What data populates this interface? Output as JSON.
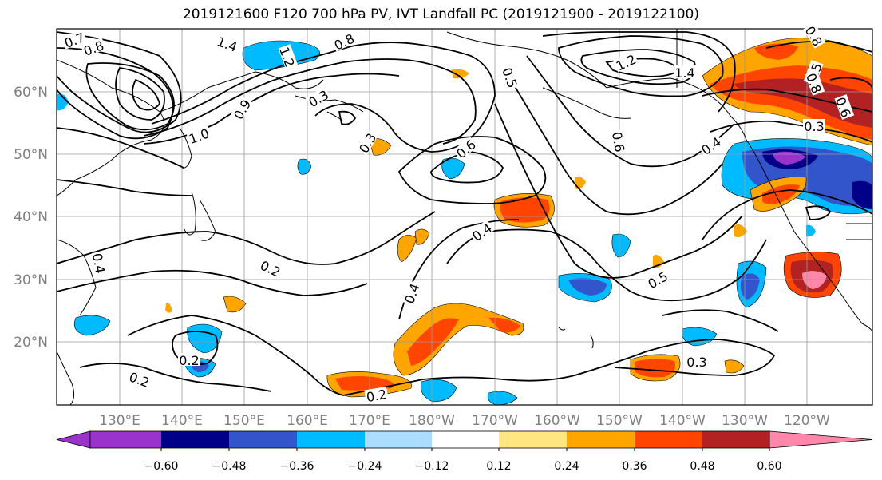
{
  "title": "2019121600 F120 700 hPa PV, IVT Landfall PC (2019121900 - 2019122100)",
  "lat_labels": [
    "60°N",
    "50°N",
    "40°N",
    "30°N",
    "20°N"
  ],
  "lon_labels": [
    "130°E",
    "140°E",
    "150°E",
    "160°E",
    "170°E",
    "180°W",
    "170°W",
    "160°W",
    "150°W",
    "140°W",
    "130°W",
    "120°W"
  ],
  "colorbar": {
    "ticks": [
      "−0.60",
      "−0.48",
      "−0.36",
      "−0.24",
      "−0.12",
      "0.12",
      "0.24",
      "0.36",
      "0.48",
      "0.60"
    ],
    "colors": [
      "#9933cc",
      "#000088",
      "#3355cc",
      "#00bbff",
      "#aaddff",
      "#ffffff",
      "#ffe680",
      "#ffa500",
      "#ff4500",
      "#b22222",
      "#ff88aa",
      "#ff88aa"
    ]
  },
  "contour_labels": [
    "0.7",
    "0.8",
    "1.4",
    "1.2",
    "0.8",
    "0.9",
    "1.0",
    "0.3",
    "0.3",
    "0.6",
    "0.5",
    "1.2",
    "1.4",
    "0.6",
    "0.4",
    "0.8",
    "0.5",
    "0.8",
    "0.6",
    "0.3",
    "0.4",
    "0.2",
    "0.4",
    "0.5",
    "0.2",
    "0.2",
    "0.3",
    "0.2",
    "0.4"
  ]
}
